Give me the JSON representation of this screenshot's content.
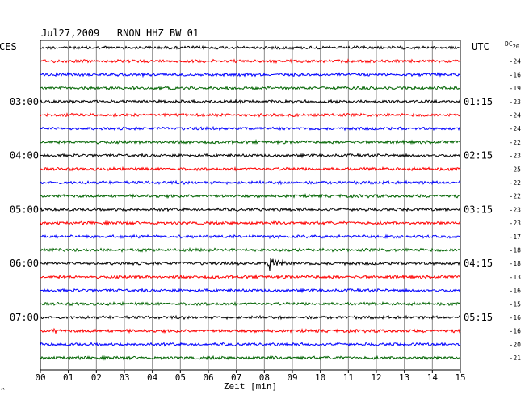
{
  "chart_data": {
    "type": "line",
    "title": "Jul27,2009   RNON HHZ BW 01",
    "left_axis_label": "CES",
    "right_axis_label": "UTC",
    "dc_label": "DC",
    "dc_label_sub": "20",
    "xlabel": "Zeit [min]",
    "x_ticks": [
      "00",
      "01",
      "02",
      "03",
      "04",
      "05",
      "06",
      "07",
      "08",
      "09",
      "10",
      "11",
      "12",
      "13",
      "14",
      "15"
    ],
    "x_range": [
      0,
      15
    ],
    "grid": true,
    "trace_colors": [
      "#000000",
      "#ff0000",
      "#0000ff",
      "#006400"
    ],
    "left_time_labels": [
      {
        "label": "03:00",
        "trace": 4
      },
      {
        "label": "04:00",
        "trace": 8
      },
      {
        "label": "05:00",
        "trace": 12
      },
      {
        "label": "06:00",
        "trace": 16
      },
      {
        "label": "07:00",
        "trace": 20
      }
    ],
    "right_time_labels": [
      {
        "label": "01:15",
        "trace": 4
      },
      {
        "label": "02:15",
        "trace": 8
      },
      {
        "label": "03:15",
        "trace": 12
      },
      {
        "label": "04:15",
        "trace": 16
      },
      {
        "label": "05:15",
        "trace": 20
      }
    ],
    "dc_offsets": [
      "-24",
      "-16",
      "-19",
      "-23",
      "-24",
      "-24",
      "-22",
      "-23",
      "-25",
      "-22",
      "-22",
      "-23",
      "-23",
      "-17",
      "-18",
      "-18",
      "-13",
      "-16",
      "-15",
      "-16",
      "-16",
      "-20",
      "-21"
    ],
    "events": [
      {
        "trace": 16,
        "minute": 8.2,
        "amplitude": "large"
      },
      {
        "trace": 21,
        "minute": 0.5,
        "amplitude": "medium"
      }
    ]
  },
  "corner_mark": "^"
}
